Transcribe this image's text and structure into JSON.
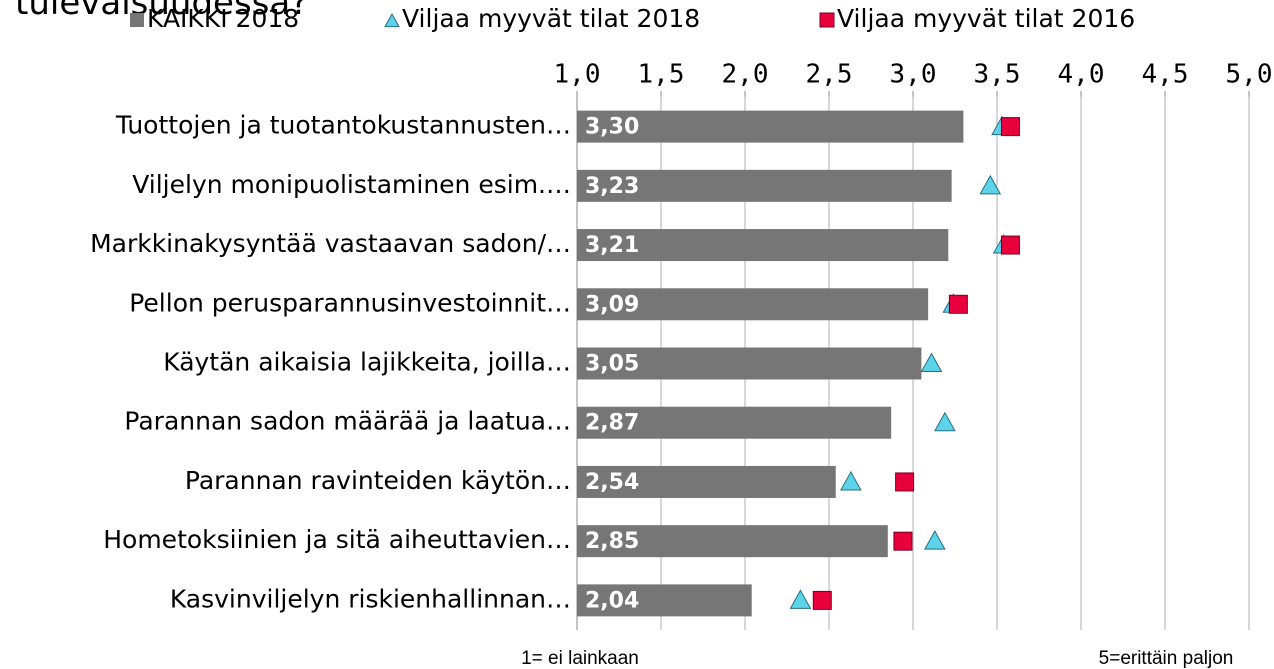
{
  "chart_data": {
    "type": "bar",
    "orientation": "horizontal",
    "title": "tulevaisuudessa?",
    "categories": [
      "Tuottojen ja tuotantokustannusten…",
      "Viljelyn monipuolistaminen esim.…",
      "Markkinakysyntää vastaavan sadon/…",
      "Pellon perusparannusinvestoinnit…",
      "Käytän aikaisia lajikkeita, joilla…",
      "Parannan sadon määrää ja laatua…",
      "Parannan ravinteiden käytön…",
      "Hometoksiinien ja sitä aiheuttavien…",
      "Kasvinviljelyn riskienhallinnan…"
    ],
    "series": [
      {
        "name": "KAIKKI 2018",
        "type": "bar",
        "color": "#767676",
        "values": [
          3.3,
          3.23,
          3.21,
          3.09,
          3.05,
          2.87,
          2.54,
          2.85,
          2.04
        ],
        "value_labels": [
          "3,30",
          "3,23",
          "3,21",
          "3,09",
          "3,05",
          "2,87",
          "2,54",
          "2,85",
          "2,04"
        ]
      },
      {
        "name": "Viljaa myyvät tilat 2018",
        "type": "triangle",
        "color": "#5bd3e8",
        "values": [
          3.53,
          3.46,
          3.54,
          3.24,
          3.11,
          3.19,
          2.63,
          3.13,
          2.33
        ]
      },
      {
        "name": "Viljaa myyvät tilat 2016",
        "type": "square",
        "color": "#e8003d",
        "values": [
          3.58,
          null,
          3.58,
          3.27,
          null,
          null,
          2.95,
          2.94,
          2.46
        ]
      }
    ],
    "xlim": [
      1.0,
      5.0
    ],
    "xticks": [
      {
        "value": 1.0,
        "label": "1,0"
      },
      {
        "value": 1.5,
        "label": "1,5"
      },
      {
        "value": 2.0,
        "label": "2,0"
      },
      {
        "value": 2.5,
        "label": "2,5"
      },
      {
        "value": 3.0,
        "label": "3,0"
      },
      {
        "value": 3.5,
        "label": "3,5"
      },
      {
        "value": 4.0,
        "label": "4,0"
      },
      {
        "value": 4.5,
        "label": "4,5"
      },
      {
        "value": 5.0,
        "label": "5,0"
      }
    ],
    "grid": true,
    "axis_notes": [
      "1= ei lainkaan",
      "5=erittäin paljon"
    ]
  }
}
